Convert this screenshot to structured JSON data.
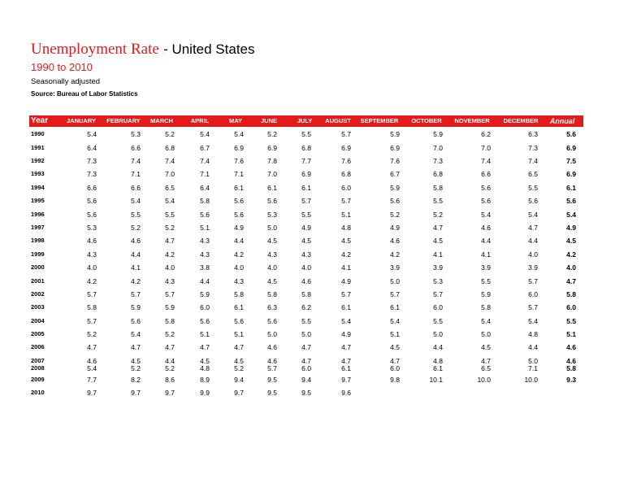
{
  "header": {
    "title": "Unemployment Rate",
    "region": "- United States",
    "period": "1990 to 2010",
    "note": "Seasonally adjusted",
    "source": "Source: Bureau of Labor Statistics"
  },
  "table": {
    "columns": [
      "Year",
      "JANUARY",
      "FEBRUARY",
      "MARCH",
      "APRIL",
      "MAY",
      "JUNE",
      "JULY",
      "AUGUST",
      "SEPTEMBER",
      "OCTOBER",
      "NOVEMBER",
      "DECEMBER",
      "Annual"
    ],
    "rows": [
      [
        "1990",
        "5.4",
        "5.3",
        "5.2",
        "5.4",
        "5.4",
        "5.2",
        "5.5",
        "5.7",
        "5.9",
        "5.9",
        "6.2",
        "6.3",
        "5.6"
      ],
      [
        "1991",
        "6.4",
        "6.6",
        "6.8",
        "6.7",
        "6.9",
        "6.9",
        "6.8",
        "6.9",
        "6.9",
        "7.0",
        "7.0",
        "7.3",
        "6.9"
      ],
      [
        "1992",
        "7.3",
        "7.4",
        "7.4",
        "7.4",
        "7.6",
        "7.8",
        "7.7",
        "7.6",
        "7.6",
        "7.3",
        "7.4",
        "7.4",
        "7.5"
      ],
      [
        "1993",
        "7.3",
        "7.1",
        "7.0",
        "7.1",
        "7.1",
        "7.0",
        "6.9",
        "6.8",
        "6.7",
        "6.8",
        "6.6",
        "6.5",
        "6.9"
      ],
      [
        "1994",
        "6.6",
        "6.6",
        "6.5",
        "6.4",
        "6.1",
        "6.1",
        "6.1",
        "6.0",
        "5.9",
        "5.8",
        "5.6",
        "5.5",
        "6.1"
      ],
      [
        "1995",
        "5.6",
        "5.4",
        "5.4",
        "5.8",
        "5.6",
        "5.6",
        "5.7",
        "5.7",
        "5.6",
        "5.5",
        "5.6",
        "5.6",
        "5.6"
      ],
      [
        "1996",
        "5.6",
        "5.5",
        "5.5",
        "5.6",
        "5.6",
        "5.3",
        "5.5",
        "5.1",
        "5.2",
        "5.2",
        "5.4",
        "5.4",
        "5.4"
      ],
      [
        "1997",
        "5.3",
        "5.2",
        "5.2",
        "5.1",
        "4.9",
        "5.0",
        "4.9",
        "4.8",
        "4.9",
        "4.7",
        "4.6",
        "4.7",
        "4.9"
      ],
      [
        "1998",
        "4.6",
        "4.6",
        "4.7",
        "4.3",
        "4.4",
        "4.5",
        "4.5",
        "4.5",
        "4.6",
        "4.5",
        "4.4",
        "4.4",
        "4.5"
      ],
      [
        "1999",
        "4.3",
        "4.4",
        "4.2",
        "4.3",
        "4.2",
        "4.3",
        "4.3",
        "4.2",
        "4.2",
        "4.1",
        "4.1",
        "4.0",
        "4.2"
      ],
      [
        "2000",
        "4.0",
        "4.1",
        "4.0",
        "3.8",
        "4.0",
        "4.0",
        "4.0",
        "4.1",
        "3.9",
        "3.9",
        "3.9",
        "3.9",
        "4.0"
      ],
      [
        "2001",
        "4.2",
        "4.2",
        "4.3",
        "4.4",
        "4.3",
        "4.5",
        "4.6",
        "4.9",
        "5.0",
        "5.3",
        "5.5",
        "5.7",
        "4.7"
      ],
      [
        "2002",
        "5.7",
        "5.7",
        "5.7",
        "5.9",
        "5.8",
        "5.8",
        "5.8",
        "5.7",
        "5.7",
        "5.7",
        "5.9",
        "6.0",
        "5.8"
      ],
      [
        "2003",
        "5.8",
        "5.9",
        "5.9",
        "6.0",
        "6.1",
        "6.3",
        "6.2",
        "6.1",
        "6.1",
        "6.0",
        "5.8",
        "5.7",
        "6.0"
      ],
      [
        "2004",
        "5.7",
        "5.6",
        "5.8",
        "5.6",
        "5.6",
        "5.6",
        "5.5",
        "5.4",
        "5.4",
        "5.5",
        "5.4",
        "5.4",
        "5.5"
      ],
      [
        "2005",
        "5.2",
        "5.4",
        "5.2",
        "5.1",
        "5.1",
        "5.0",
        "5.0",
        "4.9",
        "5.1",
        "5.0",
        "5.0",
        "4.8",
        "5.1"
      ],
      [
        "2006",
        "4.7",
        "4.7",
        "4.7",
        "4.7",
        "4.7",
        "4.6",
        "4.7",
        "4.7",
        "4.5",
        "4.4",
        "4.5",
        "4.4",
        "4.6"
      ],
      [
        "2007",
        "4.6",
        "4.5",
        "4.4",
        "4.5",
        "4.5",
        "4.6",
        "4.7",
        "4.7",
        "4.7",
        "4.8",
        "4.7",
        "5.0",
        "4.6"
      ],
      [
        "2008",
        "5.4",
        "5.2",
        "5.2",
        "4.8",
        "5.2",
        "5.7",
        "6.0",
        "6.1",
        "6.0",
        "6.1",
        "6.5",
        "7.1",
        "5.8"
      ],
      [
        "2009",
        "7.7",
        "8.2",
        "8.6",
        "8.9",
        "9.4",
        "9.5",
        "9.4",
        "9.7",
        "9.8",
        "10.1",
        "10.0",
        "10.0",
        "9.3"
      ],
      [
        "2010",
        "9.7",
        "9.7",
        "9.7",
        "9.9",
        "9.7",
        "9.5",
        "9.5",
        "9.6"
      ]
    ]
  }
}
